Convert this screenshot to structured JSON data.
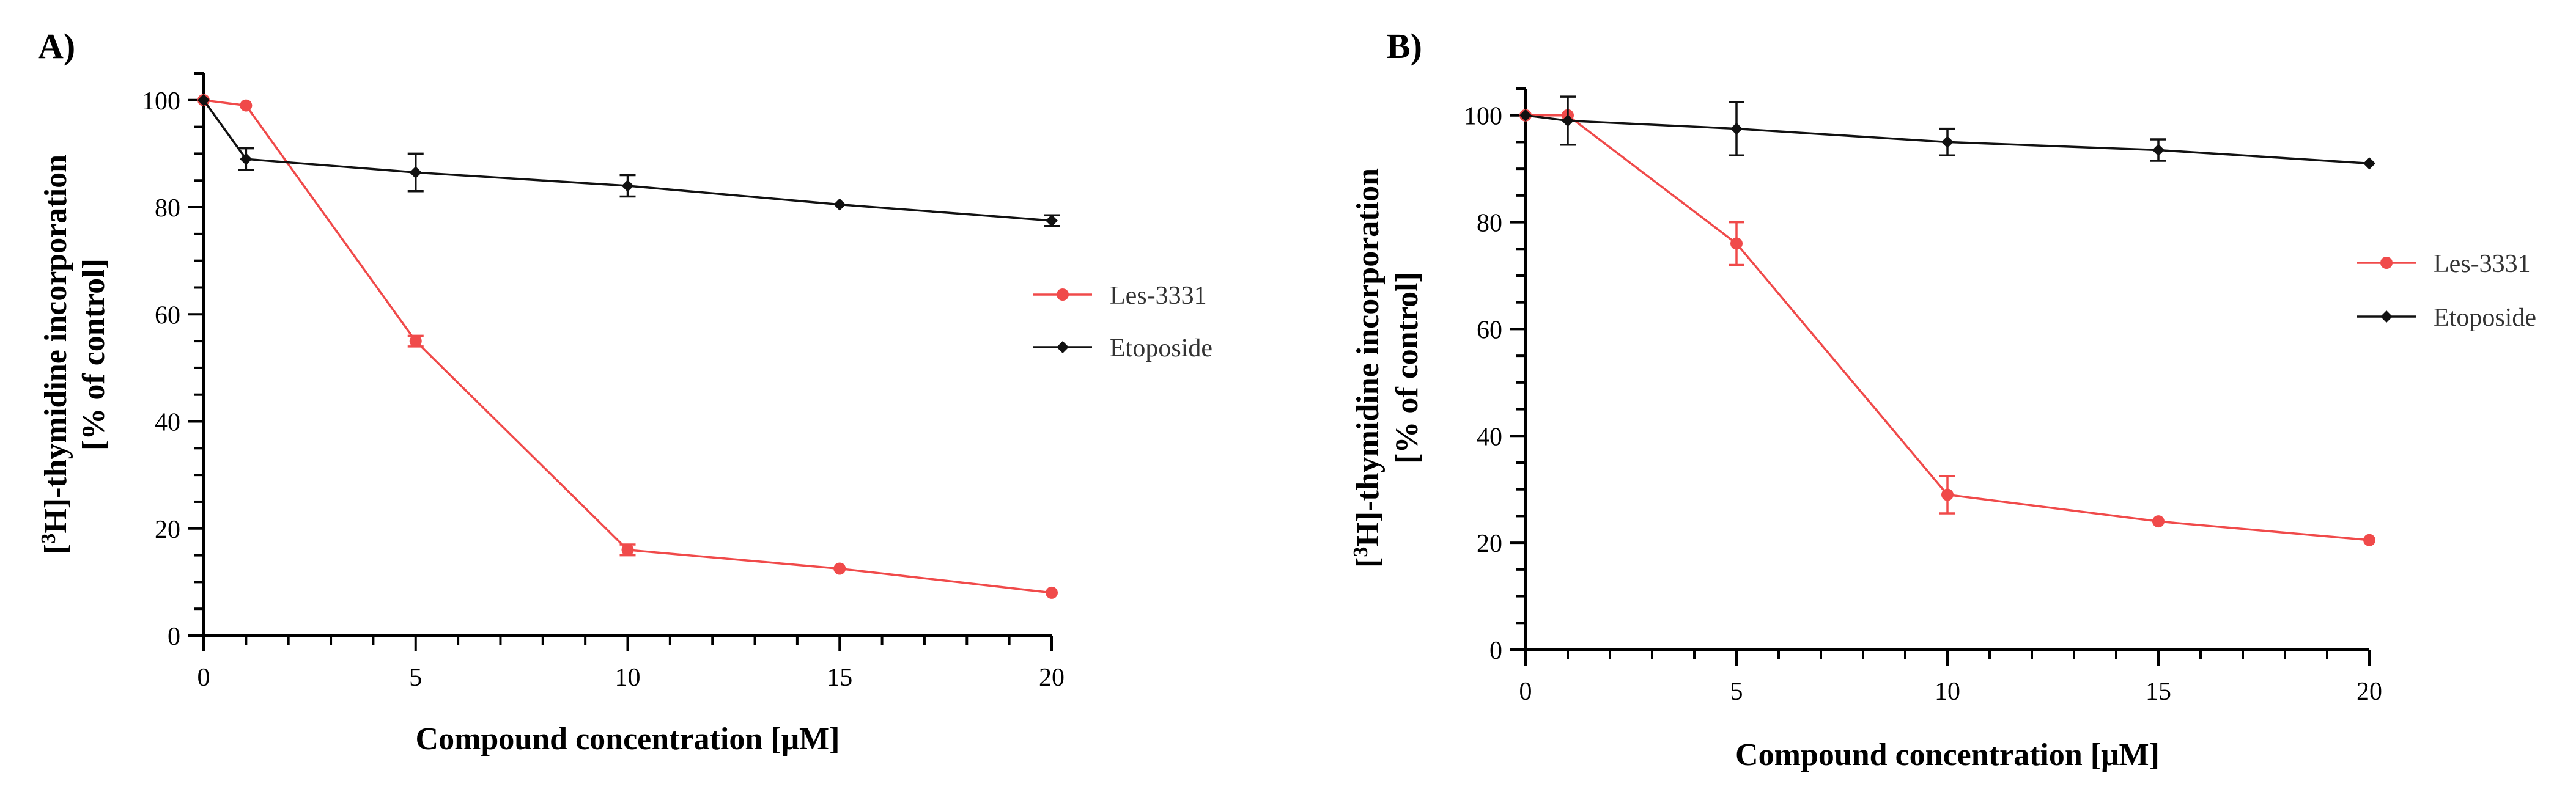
{
  "chart_data": [
    {
      "type": "line",
      "panel": "A)",
      "xlabel": "Compound concentration [μM]",
      "ylabel_line1": "[3H]-thymidine incorporation",
      "ylabel_sup": "3",
      "ylabel_rest": "H]-thymidine incorporation",
      "ylabel_line2": "[% of control]",
      "xlim": [
        0,
        20
      ],
      "ylim": [
        0,
        105
      ],
      "x_ticks": [
        0,
        5,
        10,
        15,
        20
      ],
      "y_ticks": [
        0,
        20,
        40,
        60,
        80,
        100
      ],
      "legend_position": "middle-right",
      "series": [
        {
          "name": "Les-3331",
          "color": "#f04a4a",
          "marker": "circle",
          "x": [
            0,
            1,
            5,
            10,
            15,
            20
          ],
          "y": [
            100,
            99,
            55,
            16,
            12.5,
            8
          ],
          "err": [
            0,
            0,
            1,
            1,
            0,
            0
          ]
        },
        {
          "name": "Etoposide",
          "color": "#111111",
          "marker": "diamond",
          "x": [
            0,
            1,
            5,
            10,
            15,
            20
          ],
          "y": [
            100,
            89,
            86.5,
            84,
            80.5,
            77.5
          ],
          "err": [
            0,
            2,
            3.5,
            2,
            0,
            1
          ]
        }
      ]
    },
    {
      "type": "line",
      "panel": "B)",
      "xlabel": "Compound concentration [μM]",
      "ylabel_line1": "[3H]-thymidine incorporation",
      "ylabel_sup": "3",
      "ylabel_rest": "H]-thymidine incorporation",
      "ylabel_line2": "[% of control]",
      "xlim": [
        0,
        20
      ],
      "ylim": [
        0,
        105
      ],
      "x_ticks": [
        0,
        5,
        10,
        15,
        20
      ],
      "y_ticks": [
        0,
        20,
        40,
        60,
        80,
        100
      ],
      "legend_position": "middle-right",
      "series": [
        {
          "name": "Les-3331",
          "color": "#f04a4a",
          "marker": "circle",
          "x": [
            0,
            1,
            5,
            10,
            15,
            20
          ],
          "y": [
            100,
            100,
            76,
            29,
            24,
            20.5
          ],
          "err": [
            0,
            0,
            4,
            3.5,
            0,
            0
          ]
        },
        {
          "name": "Etoposide",
          "color": "#111111",
          "marker": "diamond",
          "x": [
            0,
            1,
            5,
            10,
            15,
            20
          ],
          "y": [
            100,
            99,
            97.5,
            95,
            93.5,
            91
          ],
          "err": [
            0,
            4.5,
            5,
            2.5,
            2,
            0
          ]
        }
      ]
    }
  ]
}
